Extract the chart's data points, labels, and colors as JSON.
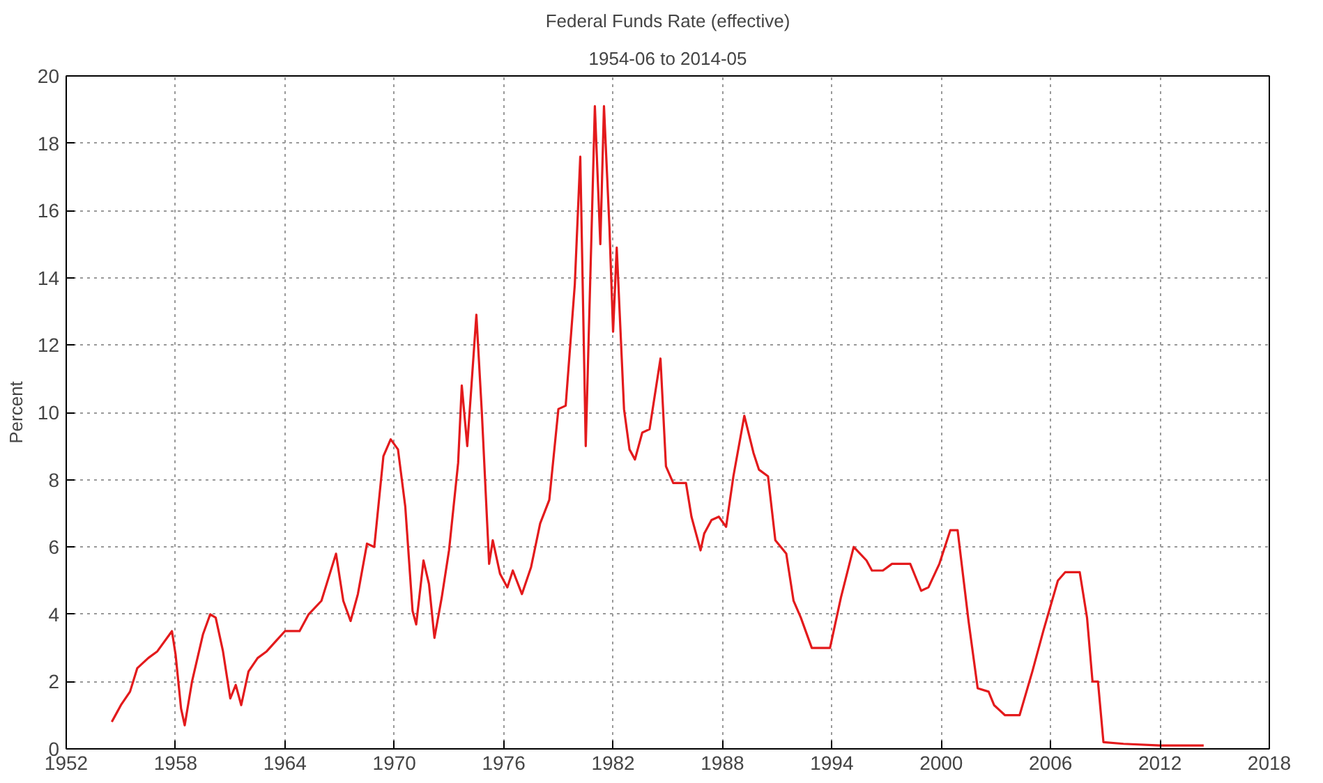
{
  "chart_data": {
    "type": "line",
    "title": "Federal Funds Rate (effective)",
    "subtitle": "1954-06 to 2014-05",
    "ylabel": "Percent",
    "x": [
      1954.5,
      1954.8,
      1955.0,
      1955.5,
      1955.9,
      1956.5,
      1957.0,
      1957.8,
      1958.0,
      1958.3,
      1958.5,
      1958.9,
      1959.5,
      1959.9,
      1960.2,
      1960.6,
      1961.0,
      1961.3,
      1961.6,
      1962.0,
      1962.5,
      1963.0,
      1963.5,
      1964.0,
      1964.8,
      1965.3,
      1966.0,
      1966.8,
      1967.2,
      1967.6,
      1968.0,
      1968.5,
      1968.9,
      1969.4,
      1969.8,
      1970.2,
      1970.6,
      1971.0,
      1971.2,
      1971.6,
      1971.9,
      1972.2,
      1972.6,
      1973.0,
      1973.5,
      1973.7,
      1974.0,
      1974.5,
      1974.8,
      1975.2,
      1975.4,
      1975.8,
      1976.2,
      1976.5,
      1977.0,
      1977.5,
      1978.0,
      1978.5,
      1979.0,
      1979.4,
      1979.9,
      1980.2,
      1980.5,
      1980.8,
      1981.0,
      1981.3,
      1981.5,
      1981.8,
      1982.0,
      1982.2,
      1982.6,
      1982.9,
      1983.2,
      1983.6,
      1984.0,
      1984.6,
      1984.9,
      1985.3,
      1985.6,
      1986.0,
      1986.3,
      1986.8,
      1987.0,
      1987.4,
      1987.8,
      1988.2,
      1988.6,
      1989.2,
      1989.7,
      1990.0,
      1990.5,
      1990.9,
      1991.5,
      1991.9,
      1992.3,
      1992.9,
      1993.5,
      1993.9,
      1994.5,
      1995.2,
      1995.9,
      1996.2,
      1996.8,
      1997.3,
      1998.3,
      1998.9,
      1999.3,
      1999.9,
      2000.5,
      2000.9,
      2001.5,
      2002.0,
      2002.6,
      2002.9,
      2003.5,
      2004.3,
      2005.0,
      2005.6,
      2006.4,
      2006.8,
      2007.6,
      2008.0,
      2008.3,
      2008.6,
      2008.9,
      2010.0,
      2012.0,
      2014.4
    ],
    "series": [
      {
        "color": "#e31a1c",
        "values": [
          0.8,
          1.1,
          1.3,
          1.7,
          2.4,
          2.7,
          2.9,
          3.5,
          2.8,
          1.2,
          0.7,
          2.0,
          3.4,
          4.0,
          3.9,
          2.9,
          1.5,
          1.9,
          1.3,
          2.3,
          2.7,
          2.9,
          3.2,
          3.5,
          3.5,
          4.0,
          4.4,
          5.8,
          4.4,
          3.8,
          4.6,
          6.1,
          6.0,
          8.7,
          9.2,
          8.9,
          7.2,
          4.1,
          3.7,
          5.6,
          4.9,
          3.3,
          4.5,
          5.9,
          8.5,
          10.8,
          9.0,
          12.9,
          10.0,
          5.5,
          6.2,
          5.2,
          4.8,
          5.3,
          4.6,
          5.4,
          6.7,
          7.4,
          10.1,
          10.2,
          13.8,
          17.6,
          9.0,
          15.0,
          19.1,
          15.0,
          19.1,
          15.5,
          12.4,
          14.9,
          10.1,
          8.9,
          8.6,
          9.4,
          9.5,
          11.6,
          8.4,
          7.9,
          7.9,
          7.9,
          6.9,
          5.9,
          6.4,
          6.8,
          6.9,
          6.6,
          8.1,
          9.9,
          8.8,
          8.3,
          8.1,
          6.2,
          5.8,
          4.4,
          3.9,
          3.0,
          3.0,
          3.0,
          4.5,
          6.0,
          5.6,
          5.3,
          5.3,
          5.5,
          5.5,
          4.7,
          4.8,
          5.5,
          6.5,
          6.5,
          3.8,
          1.8,
          1.7,
          1.3,
          1.0,
          1.0,
          2.3,
          3.5,
          5.0,
          5.25,
          5.25,
          3.9,
          2.0,
          2.0,
          0.2,
          0.15,
          0.1,
          0.1
        ]
      }
    ],
    "xlim": [
      1952,
      2018
    ],
    "xticks": [
      1952,
      1958,
      1964,
      1970,
      1976,
      1982,
      1988,
      1994,
      2000,
      2006,
      2012,
      2018
    ],
    "ylim": [
      0,
      20
    ],
    "yticks": [
      0,
      2,
      4,
      6,
      8,
      10,
      12,
      14,
      16,
      18,
      20
    ],
    "grid": true,
    "line_style": "solid",
    "marker": "none"
  }
}
